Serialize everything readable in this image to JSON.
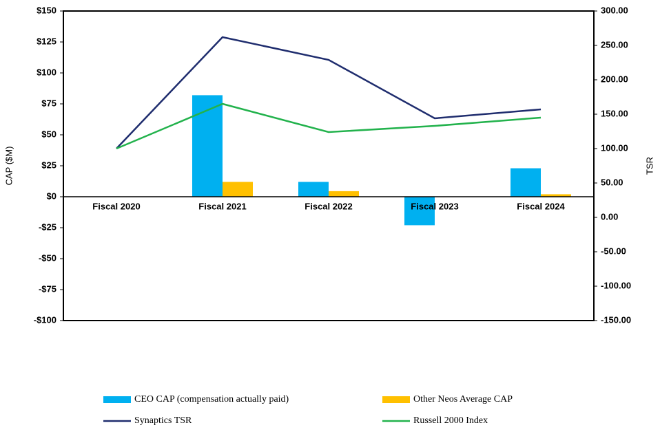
{
  "chart_data": {
    "type": "bar_line",
    "categories": [
      "Fiscal 2020",
      "Fiscal 2021",
      "Fiscal 2022",
      "Fiscal 2023",
      "Fiscal 2024"
    ],
    "ylabel": "CAP ($M)",
    "y2label": "TSR",
    "ylim": [
      -100,
      150
    ],
    "yticks": [
      {
        "value": 150,
        "label": "$150"
      },
      {
        "value": 125,
        "label": "$125"
      },
      {
        "value": 100,
        "label": "$100"
      },
      {
        "value": 75,
        "label": "$75"
      },
      {
        "value": 50,
        "label": "$50"
      },
      {
        "value": 25,
        "label": "$25"
      },
      {
        "value": 0,
        "label": "$0"
      },
      {
        "value": -25,
        "label": "-$25"
      },
      {
        "value": -50,
        "label": "-$50"
      },
      {
        "value": -75,
        "label": "-$75"
      },
      {
        "value": -100,
        "label": "-$100"
      }
    ],
    "y2lim": [
      -150,
      300
    ],
    "y2ticks": [
      {
        "value": 300,
        "label": "300.00"
      },
      {
        "value": 250,
        "label": "250.00"
      },
      {
        "value": 200,
        "label": "200.00"
      },
      {
        "value": 150,
        "label": "150.00"
      },
      {
        "value": 100,
        "label": "100.00"
      },
      {
        "value": 50,
        "label": "50.00"
      },
      {
        "value": 0,
        "label": "0.00"
      },
      {
        "value": -50,
        "label": "-50.00"
      },
      {
        "value": -100,
        "label": "-100.00"
      },
      {
        "value": -150,
        "label": "-150.00"
      }
    ],
    "series": [
      {
        "name": "CEO CAP (compensation actually paid)",
        "color": "#00b0f0",
        "kind": "bar",
        "values": [
          0,
          82,
          12,
          -23,
          23
        ]
      },
      {
        "name": "Other Neos Average CAP",
        "color": "#ffc000",
        "kind": "bar",
        "values": [
          0,
          12,
          4.5,
          0,
          2
        ]
      },
      {
        "name": "Synaptics TSR",
        "color": "#1f2d6e",
        "kind": "line",
        "axis": "y2",
        "values": [
          100,
          262,
          229,
          144,
          157
        ]
      },
      {
        "name": "Russell 2000 Index",
        "color": "#22b24c",
        "kind": "line",
        "axis": "y2",
        "values": [
          100,
          165,
          124,
          133,
          145
        ]
      }
    ]
  }
}
